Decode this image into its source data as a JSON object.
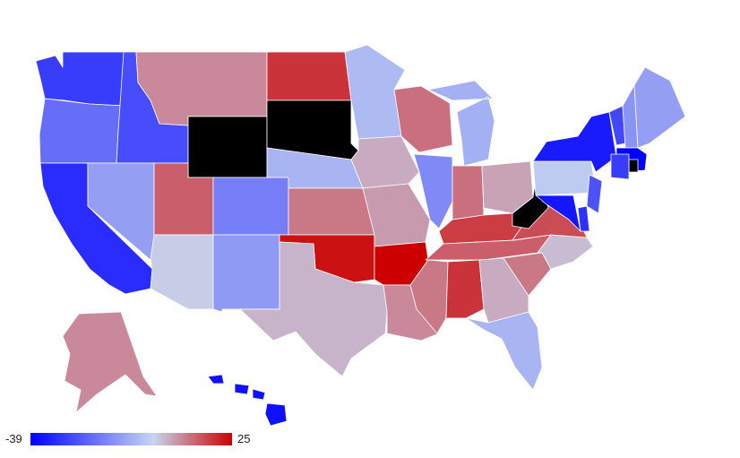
{
  "legend": {
    "min_label": "-39",
    "max_label": "25",
    "min": -39,
    "max": 25,
    "colors": {
      "low": "#0000ff",
      "mid": "#c7d6f0",
      "high": "#cc0000"
    }
  },
  "no_data_color": "#000000",
  "states": {
    "WA": -28,
    "OR": -19,
    "CA": -31,
    "ID": -25,
    "NV": -10,
    "MT": 9,
    "WY": null,
    "UT": 14,
    "AZ": 1,
    "CO": -16,
    "NM": -11,
    "ND": 19,
    "SD": null,
    "NE": -6,
    "KS": 11,
    "OK": 23,
    "TX": 4,
    "MN": -5,
    "IA": 5,
    "MO": 7,
    "AR": 25,
    "LA": 9,
    "WI": 12,
    "IL": -14,
    "MI": -7,
    "IN": 12,
    "OH": 6,
    "KY": 18,
    "TN": 14,
    "MS": 11,
    "AL": 19,
    "GA": 5,
    "FL": -6,
    "SC": 11,
    "NC": 3,
    "VA": 16,
    "WV": null,
    "PA": -2,
    "NY": -34,
    "VT": -26,
    "NH": -12,
    "ME": -10,
    "MA": -39,
    "RI": null,
    "CT": -28,
    "NJ": -24,
    "DE": -30,
    "MD": -35,
    "AK": 9,
    "HI": -36
  }
}
